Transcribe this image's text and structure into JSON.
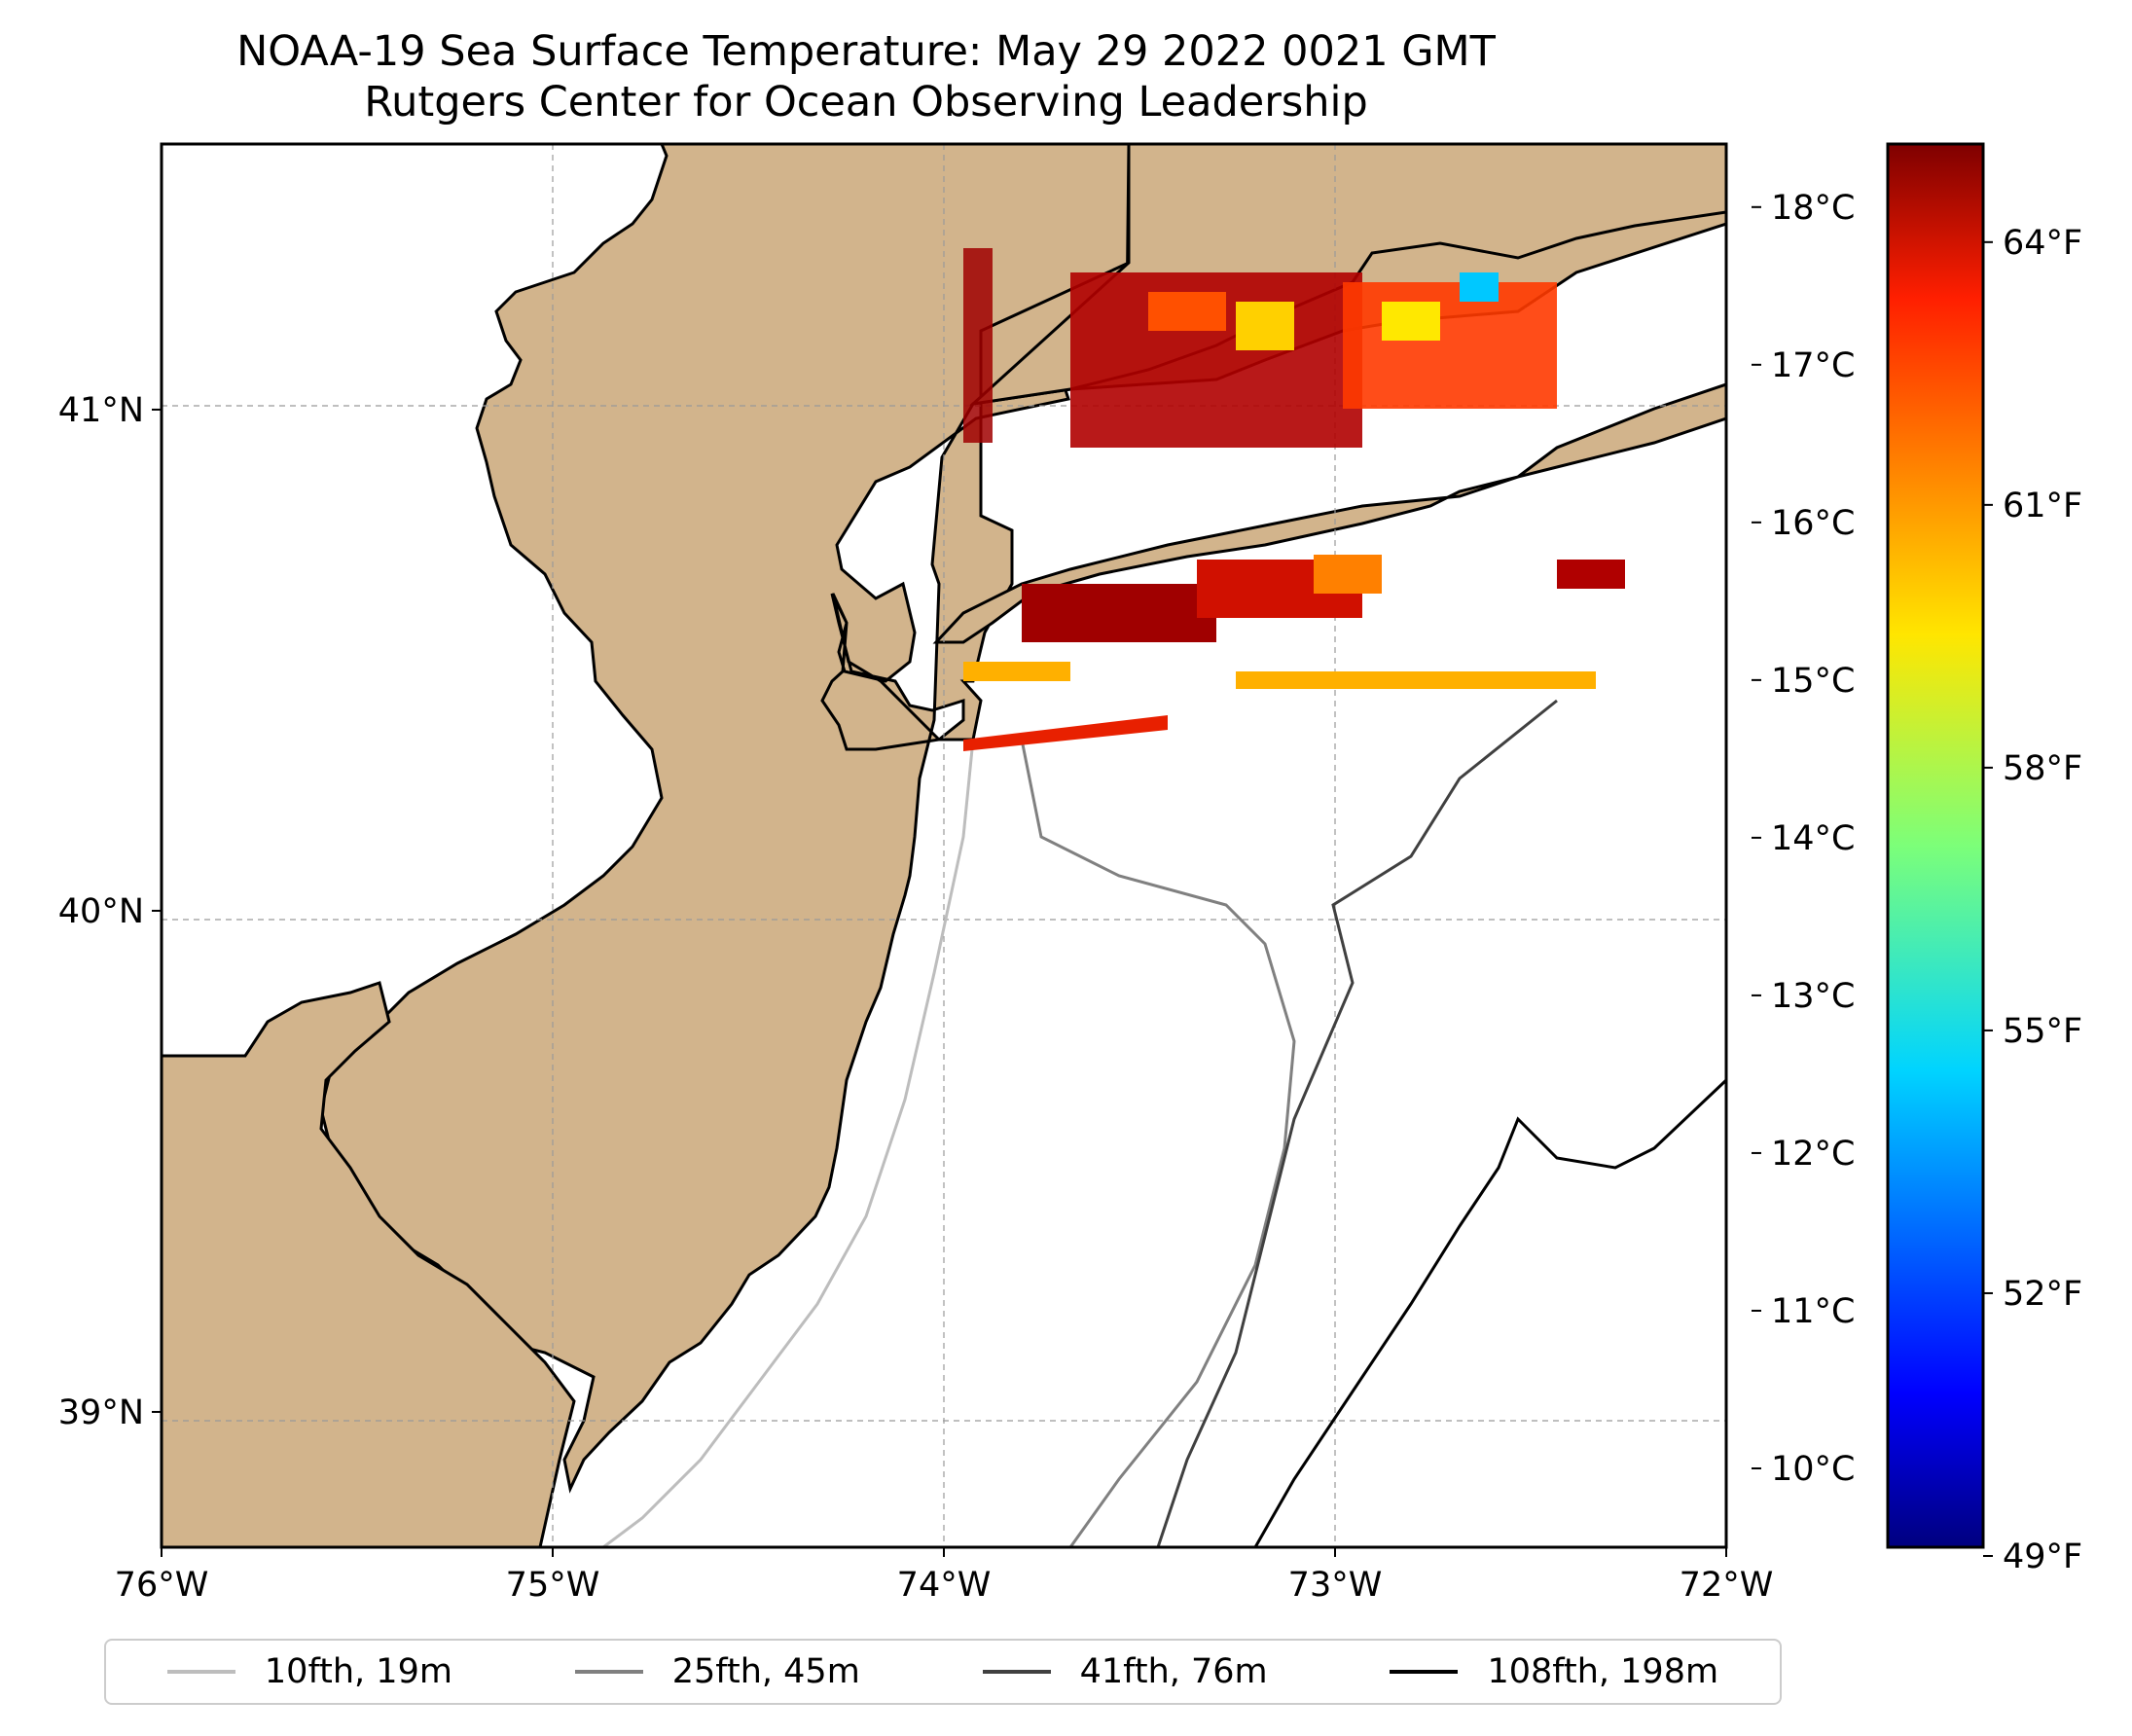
{
  "title": {
    "line1": "NOAA-19 Sea Surface Temperature: May 29 2022 0021 GMT",
    "line2": "Rutgers Center for Ocean Observing Leadership"
  },
  "map": {
    "lon_range": [
      -76,
      -72
    ],
    "lat_range": [
      38.73,
      41.53
    ],
    "x_ticks": [
      {
        "lon": -76,
        "label": "76°W"
      },
      {
        "lon": -75,
        "label": "75°W"
      },
      {
        "lon": -74,
        "label": "74°W"
      },
      {
        "lon": -73,
        "label": "73°W"
      },
      {
        "lon": -72,
        "label": "72°W"
      }
    ],
    "y_ticks": [
      {
        "lat": 41,
        "label": "41°N"
      },
      {
        "lat": 40,
        "label": "40°N"
      },
      {
        "lat": 39,
        "label": "39°N"
      }
    ],
    "gridlines": true,
    "land_color": "#d2b48c",
    "ocean_color": "#ffffff"
  },
  "colorbar": {
    "colormap": "jet",
    "celsius_range": [
      9.5,
      18.4
    ],
    "celsius_ticks": [
      {
        "value": 18,
        "label": "18°C"
      },
      {
        "value": 17,
        "label": "17°C"
      },
      {
        "value": 16,
        "label": "16°C"
      },
      {
        "value": 15,
        "label": "15°C"
      },
      {
        "value": 14,
        "label": "14°C"
      },
      {
        "value": 13,
        "label": "13°C"
      },
      {
        "value": 12,
        "label": "12°C"
      },
      {
        "value": 11,
        "label": "11°C"
      },
      {
        "value": 10,
        "label": "10°C"
      }
    ],
    "fahrenheit_ticks": [
      {
        "value": 64,
        "label": "64°F"
      },
      {
        "value": 61,
        "label": "61°F"
      },
      {
        "value": 58,
        "label": "58°F"
      },
      {
        "value": 55,
        "label": "55°F"
      },
      {
        "value": 52,
        "label": "52°F"
      },
      {
        "value": 49,
        "label": "49°F"
      }
    ]
  },
  "legend": {
    "items": [
      {
        "label": "10fth, 19m",
        "color": "#bdbdbd"
      },
      {
        "label": "25fth, 45m",
        "color": "#808080"
      },
      {
        "label": "41fth, 76m",
        "color": "#404040"
      },
      {
        "label": "108fth, 198m",
        "color": "#000000"
      }
    ]
  }
}
